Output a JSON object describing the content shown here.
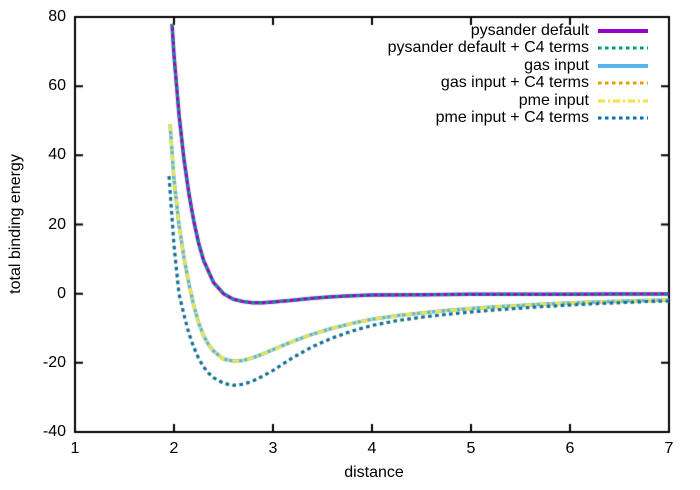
{
  "chart_data": {
    "type": "line",
    "title": "",
    "xlabel": "distance",
    "ylabel": "total binding energy",
    "xlim": [
      1,
      7
    ],
    "ylim": [
      -40,
      80
    ],
    "x_ticks": [
      "1",
      "2",
      "3",
      "4",
      "5",
      "6",
      "7"
    ],
    "x_tick_values": [
      1,
      2,
      3,
      4,
      5,
      6,
      7
    ],
    "y_ticks": [
      "-40",
      "-20",
      "0",
      "20",
      "40",
      "60",
      "80"
    ],
    "y_tick_values": [
      -40,
      -20,
      0,
      20,
      40,
      60,
      80
    ],
    "grid": false,
    "legend_position": "top-right-inside",
    "background_color": "#ffffff",
    "axis_color": "#000000",
    "series": [
      {
        "name": "pysander default",
        "color": "#9400d3",
        "style": "solid",
        "x": [
          1.98,
          2.0,
          2.05,
          2.1,
          2.15,
          2.2,
          2.25,
          2.3,
          2.4,
          2.5,
          2.6,
          2.7,
          2.8,
          2.9,
          3.0,
          3.2,
          3.4,
          3.6,
          3.8,
          4.0,
          4.5,
          5.0,
          5.5,
          6.0,
          6.5,
          7.0
        ],
        "y": [
          78,
          69,
          52,
          39,
          29,
          21,
          14.5,
          9.5,
          3.2,
          0,
          -1.6,
          -2.3,
          -2.6,
          -2.6,
          -2.4,
          -1.9,
          -1.3,
          -0.9,
          -0.6,
          -0.4,
          -0.3,
          -0.2,
          -0.2,
          -0.2,
          -0.1,
          -0.1
        ]
      },
      {
        "name": "pysander default + C4 terms",
        "color": "#009e73",
        "style": "dashed",
        "x": [
          1.98,
          2.0,
          2.05,
          2.1,
          2.15,
          2.2,
          2.25,
          2.3,
          2.4,
          2.5,
          2.6,
          2.7,
          2.8,
          2.9,
          3.0,
          3.2,
          3.4,
          3.6,
          3.8,
          4.0,
          4.5,
          5.0,
          5.5,
          6.0,
          6.5,
          7.0
        ],
        "y": [
          78,
          69,
          52,
          39,
          29,
          21,
          14.5,
          9.5,
          3.2,
          0,
          -1.6,
          -2.3,
          -2.6,
          -2.6,
          -2.4,
          -1.9,
          -1.3,
          -0.9,
          -0.6,
          -0.4,
          -0.3,
          -0.2,
          -0.2,
          -0.2,
          -0.1,
          -0.1
        ]
      },
      {
        "name": "gas input",
        "color": "#56b4e9",
        "style": "solid",
        "x": [
          1.96,
          2.0,
          2.05,
          2.1,
          2.15,
          2.2,
          2.25,
          2.3,
          2.35,
          2.4,
          2.5,
          2.6,
          2.7,
          2.8,
          2.9,
          3.0,
          3.2,
          3.4,
          3.6,
          3.8,
          4.0,
          4.25,
          4.5,
          4.75,
          5.0,
          5.25,
          5.5,
          5.75,
          6.0,
          6.25,
          6.5,
          6.75,
          7.0
        ],
        "y": [
          49,
          33,
          20,
          10.5,
          3,
          -3.5,
          -8.5,
          -12.2,
          -14.8,
          -16.6,
          -18.9,
          -19.5,
          -19.3,
          -18.5,
          -17.4,
          -16.2,
          -13.8,
          -11.7,
          -10.0,
          -8.6,
          -7.4,
          -6.4,
          -5.6,
          -4.9,
          -4.3,
          -3.8,
          -3.4,
          -3.0,
          -2.7,
          -2.4,
          -2.2,
          -2.0,
          -1.8
        ]
      },
      {
        "name": "gas input + C4 terms",
        "color": "#e69f00",
        "style": "dashed",
        "x": [
          1.95,
          2.0,
          2.05,
          2.1,
          2.15,
          2.2,
          2.25,
          2.3,
          2.35,
          2.4,
          2.5,
          2.6,
          2.7,
          2.8,
          2.9,
          3.0,
          3.2,
          3.4,
          3.6,
          3.8,
          4.0,
          4.25,
          4.5,
          4.75,
          5.0,
          5.25,
          5.5,
          5.75,
          6.0,
          6.25,
          6.5,
          6.75,
          7.0
        ],
        "y": [
          34,
          14,
          0,
          -6,
          -11.5,
          -15.5,
          -18.8,
          -21.2,
          -23.0,
          -24.3,
          -25.9,
          -26.5,
          -26.2,
          -25.2,
          -23.8,
          -22.2,
          -18.5,
          -15.3,
          -12.8,
          -10.8,
          -9.2,
          -7.8,
          -6.8,
          -6.0,
          -5.3,
          -4.7,
          -4.2,
          -3.7,
          -3.3,
          -2.9,
          -2.6,
          -2.3,
          -2.1
        ]
      },
      {
        "name": "pme input",
        "color": "#f0e442",
        "style": "dash-dot",
        "x": [
          1.96,
          2.0,
          2.05,
          2.1,
          2.15,
          2.2,
          2.25,
          2.3,
          2.35,
          2.4,
          2.5,
          2.6,
          2.7,
          2.8,
          2.9,
          3.0,
          3.2,
          3.4,
          3.6,
          3.8,
          4.0,
          4.25,
          4.5,
          4.75,
          5.0,
          5.25,
          5.5,
          5.75,
          6.0,
          6.25,
          6.5,
          6.75,
          7.0
        ],
        "y": [
          49,
          33,
          20,
          10.5,
          3,
          -3.5,
          -8.5,
          -12.2,
          -14.8,
          -16.6,
          -18.9,
          -19.5,
          -19.3,
          -18.5,
          -17.4,
          -16.2,
          -13.8,
          -11.7,
          -10.0,
          -8.6,
          -7.4,
          -6.4,
          -5.6,
          -4.9,
          -4.3,
          -3.8,
          -3.4,
          -3.0,
          -2.7,
          -2.4,
          -2.2,
          -2.0,
          -1.8
        ]
      },
      {
        "name": "pme input + C4 terms",
        "color": "#0072b2",
        "style": "dashed",
        "x": [
          1.95,
          2.0,
          2.05,
          2.1,
          2.15,
          2.2,
          2.25,
          2.3,
          2.35,
          2.4,
          2.5,
          2.6,
          2.7,
          2.8,
          2.9,
          3.0,
          3.2,
          3.4,
          3.6,
          3.8,
          4.0,
          4.25,
          4.5,
          4.75,
          5.0,
          5.25,
          5.5,
          5.75,
          6.0,
          6.25,
          6.5,
          6.75,
          7.0
        ],
        "y": [
          34,
          14,
          0,
          -6,
          -11.5,
          -15.5,
          -18.8,
          -21.2,
          -23.0,
          -24.3,
          -25.9,
          -26.5,
          -26.2,
          -25.2,
          -23.8,
          -22.2,
          -18.5,
          -15.3,
          -12.8,
          -10.8,
          -9.2,
          -7.8,
          -6.8,
          -6.0,
          -5.3,
          -4.7,
          -4.2,
          -3.7,
          -3.3,
          -2.9,
          -2.6,
          -2.3,
          -2.1
        ]
      }
    ]
  }
}
